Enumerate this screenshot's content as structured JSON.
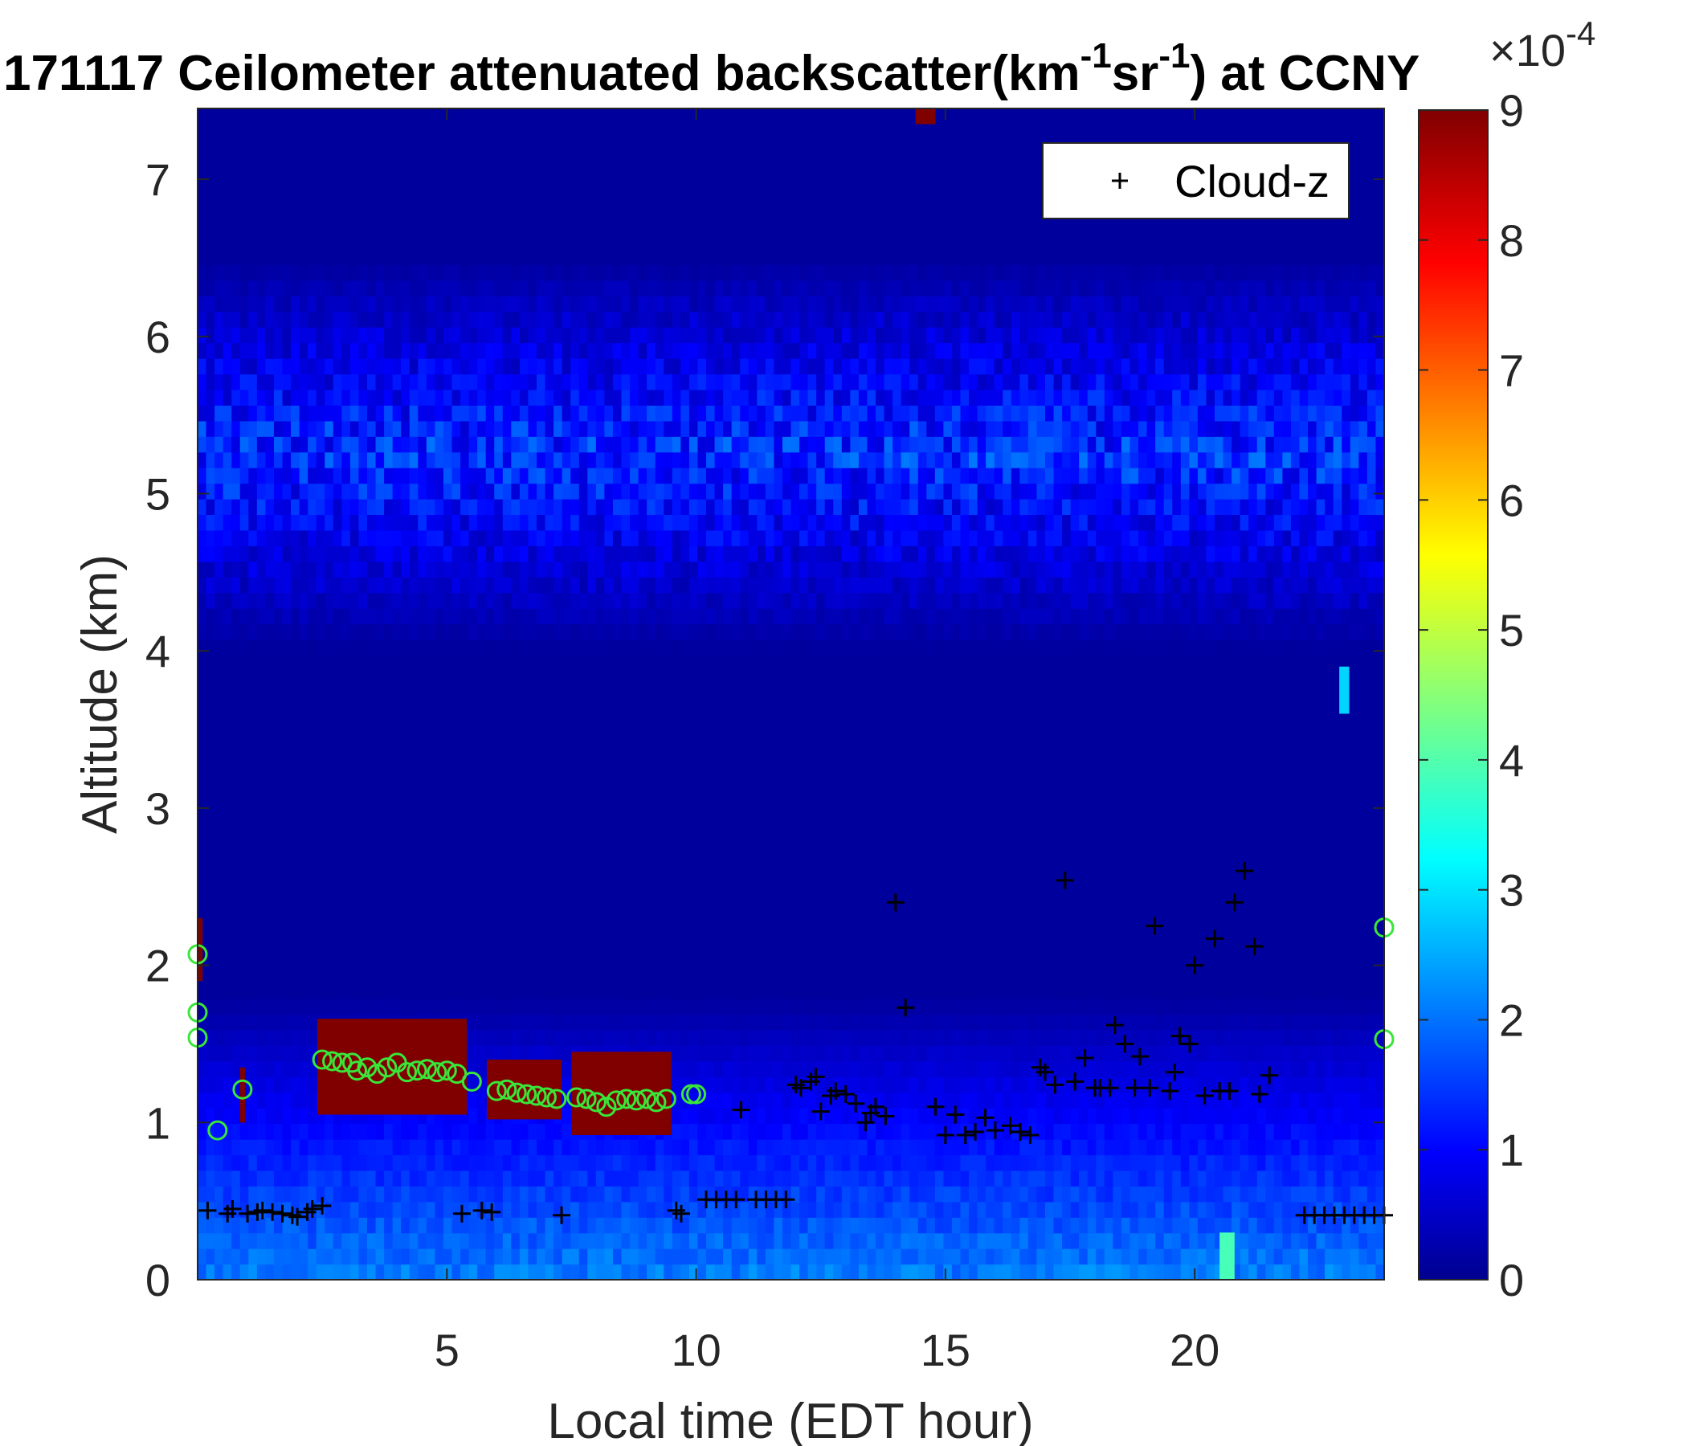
{
  "chart_data": {
    "type": "heatmap",
    "title": {
      "prefix": "171117 Ceilometer attenuated backscatter(km",
      "sup1": "-1",
      "mid": "sr",
      "sup2": "-1",
      "suffix": ") at CCNY"
    },
    "xlabel": "Local time (EDT hour)",
    "ylabel": "Altitude (km)",
    "xlim": [
      0,
      23.8
    ],
    "ylim": [
      0,
      7.45
    ],
    "xticks": [
      5,
      10,
      15,
      20
    ],
    "yticks": [
      0,
      1,
      2,
      3,
      4,
      5,
      6,
      7
    ],
    "colormap": "jet",
    "colorbar": {
      "min": 0,
      "max": 9,
      "ticks": [
        0,
        1,
        2,
        3,
        4,
        5,
        6,
        7,
        8,
        9
      ],
      "exponent_label": "×10",
      "exponent": "-4"
    },
    "legend": {
      "position": "top-right",
      "entries": [
        {
          "marker": "+",
          "label": "Cloud-z"
        }
      ]
    },
    "cloud_z": [
      [
        0.2,
        0.44
      ],
      [
        0.6,
        0.42
      ],
      [
        0.7,
        0.45
      ],
      [
        1.0,
        0.42
      ],
      [
        1.2,
        0.43
      ],
      [
        1.3,
        0.44
      ],
      [
        1.5,
        0.43
      ],
      [
        1.7,
        0.42
      ],
      [
        1.9,
        0.41
      ],
      [
        2.0,
        0.4
      ],
      [
        2.2,
        0.43
      ],
      [
        2.3,
        0.45
      ],
      [
        2.5,
        0.47
      ],
      [
        5.3,
        0.42
      ],
      [
        5.7,
        0.44
      ],
      [
        5.9,
        0.43
      ],
      [
        7.3,
        0.41
      ],
      [
        9.6,
        0.44
      ],
      [
        9.7,
        0.42
      ],
      [
        10.2,
        0.51
      ],
      [
        10.4,
        0.51
      ],
      [
        10.6,
        0.51
      ],
      [
        10.8,
        0.51
      ],
      [
        11.2,
        0.51
      ],
      [
        11.4,
        0.51
      ],
      [
        11.6,
        0.51
      ],
      [
        11.8,
        0.51
      ],
      [
        10.9,
        1.08
      ],
      [
        12.0,
        1.24
      ],
      [
        12.1,
        1.22
      ],
      [
        12.3,
        1.26
      ],
      [
        12.4,
        1.29
      ],
      [
        12.5,
        1.07
      ],
      [
        12.7,
        1.17
      ],
      [
        12.8,
        1.2
      ],
      [
        13.0,
        1.18
      ],
      [
        13.2,
        1.12
      ],
      [
        13.4,
        1.0
      ],
      [
        13.5,
        1.06
      ],
      [
        13.6,
        1.1
      ],
      [
        13.8,
        1.04
      ],
      [
        14.0,
        2.4
      ],
      [
        14.2,
        1.73
      ],
      [
        14.8,
        1.1
      ],
      [
        15.0,
        0.92
      ],
      [
        15.2,
        1.05
      ],
      [
        15.4,
        0.92
      ],
      [
        15.6,
        0.94
      ],
      [
        15.8,
        1.03
      ],
      [
        16.0,
        0.95
      ],
      [
        16.3,
        0.98
      ],
      [
        16.5,
        0.94
      ],
      [
        16.7,
        0.92
      ],
      [
        16.9,
        1.35
      ],
      [
        17.0,
        1.32
      ],
      [
        17.2,
        1.24
      ],
      [
        17.4,
        2.54
      ],
      [
        17.6,
        1.26
      ],
      [
        17.8,
        1.41
      ],
      [
        18.0,
        1.22
      ],
      [
        18.1,
        1.22
      ],
      [
        18.3,
        1.22
      ],
      [
        18.4,
        1.62
      ],
      [
        18.6,
        1.5
      ],
      [
        18.8,
        1.22
      ],
      [
        18.9,
        1.42
      ],
      [
        19.1,
        1.22
      ],
      [
        19.2,
        2.25
      ],
      [
        19.5,
        1.2
      ],
      [
        19.6,
        1.32
      ],
      [
        19.7,
        1.55
      ],
      [
        19.9,
        1.5
      ],
      [
        20.0,
        2.0
      ],
      [
        20.2,
        1.17
      ],
      [
        20.4,
        2.17
      ],
      [
        20.5,
        1.2
      ],
      [
        20.7,
        1.2
      ],
      [
        20.8,
        2.4
      ],
      [
        21.0,
        2.6
      ],
      [
        21.2,
        2.12
      ],
      [
        21.3,
        1.18
      ],
      [
        21.5,
        1.3
      ],
      [
        22.2,
        0.41
      ],
      [
        22.4,
        0.41
      ],
      [
        22.6,
        0.41
      ],
      [
        22.8,
        0.41
      ],
      [
        23.0,
        0.41
      ],
      [
        23.2,
        0.41
      ],
      [
        23.4,
        0.41
      ],
      [
        23.6,
        0.41
      ],
      [
        23.8,
        0.41
      ]
    ],
    "cloud_base_circles": [
      [
        0.0,
        2.07
      ],
      [
        0.0,
        1.7
      ],
      [
        0.0,
        1.54
      ],
      [
        0.4,
        0.95
      ],
      [
        0.9,
        1.21
      ],
      [
        2.5,
        1.4
      ],
      [
        2.7,
        1.39
      ],
      [
        2.9,
        1.38
      ],
      [
        3.1,
        1.38
      ],
      [
        3.2,
        1.33
      ],
      [
        3.4,
        1.35
      ],
      [
        3.6,
        1.31
      ],
      [
        3.8,
        1.35
      ],
      [
        4.0,
        1.38
      ],
      [
        4.2,
        1.32
      ],
      [
        4.4,
        1.33
      ],
      [
        4.6,
        1.34
      ],
      [
        4.8,
        1.32
      ],
      [
        5.0,
        1.33
      ],
      [
        5.2,
        1.31
      ],
      [
        5.5,
        1.26
      ],
      [
        6.0,
        1.2
      ],
      [
        6.2,
        1.21
      ],
      [
        6.4,
        1.19
      ],
      [
        6.6,
        1.18
      ],
      [
        6.8,
        1.17
      ],
      [
        7.0,
        1.16
      ],
      [
        7.2,
        1.15
      ],
      [
        7.6,
        1.16
      ],
      [
        7.8,
        1.15
      ],
      [
        8.0,
        1.13
      ],
      [
        8.2,
        1.1
      ],
      [
        8.4,
        1.14
      ],
      [
        8.6,
        1.15
      ],
      [
        8.8,
        1.14
      ],
      [
        9.0,
        1.15
      ],
      [
        9.2,
        1.13
      ],
      [
        9.4,
        1.15
      ],
      [
        9.9,
        1.18
      ],
      [
        10.0,
        1.18
      ],
      [
        23.8,
        2.24
      ],
      [
        23.8,
        1.53
      ]
    ],
    "features": [
      {
        "kind": "elevated-aerosol-layer",
        "x0": 0,
        "x1": 23.8,
        "z0": 4.0,
        "z1": 6.5,
        "value": 1.6
      },
      {
        "kind": "boundary-layer",
        "x0": 0,
        "x1": 23.8,
        "z0": 0,
        "z1": 1.0,
        "value": 2.0
      },
      {
        "kind": "thick-cloud",
        "x0": 2.4,
        "x1": 5.4,
        "z0": 1.05,
        "z1": 1.66,
        "value": 9
      },
      {
        "kind": "thick-cloud",
        "x0": 5.8,
        "x1": 7.3,
        "z0": 1.02,
        "z1": 1.4,
        "value": 9
      },
      {
        "kind": "thick-cloud",
        "x0": 7.5,
        "x1": 9.5,
        "z0": 0.92,
        "z1": 1.45,
        "value": 9
      },
      {
        "kind": "thick-cloud",
        "x0": 0,
        "x1": 0.1,
        "z0": 1.9,
        "z1": 2.3,
        "value": 9
      },
      {
        "kind": "thick-cloud",
        "x0": 0.85,
        "x1": 0.95,
        "z0": 1.0,
        "z1": 1.35,
        "value": 9
      },
      {
        "kind": "thick-cloud",
        "x0": 14.4,
        "x1": 14.8,
        "z0": 7.35,
        "z1": 7.45,
        "value": 9
      },
      {
        "kind": "plume",
        "x0": 20.5,
        "x1": 20.8,
        "z0": 0,
        "z1": 0.3,
        "value": 4
      },
      {
        "kind": "plume",
        "x0": 22.9,
        "x1": 23.1,
        "z0": 3.6,
        "z1": 3.9,
        "value": 3
      }
    ]
  }
}
